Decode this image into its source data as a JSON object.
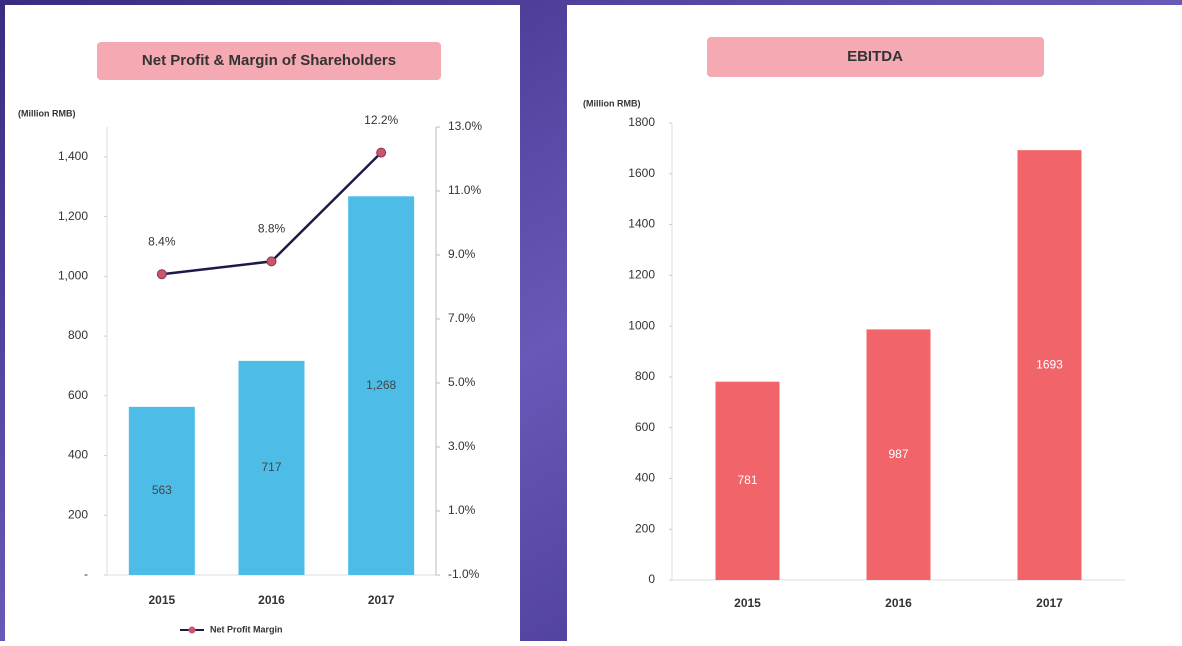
{
  "chart_data": [
    {
      "type": "bar_line",
      "title": "Net Profit & Margin of Shareholders",
      "unit_label": "(Million RMB)",
      "categories": [
        "2015",
        "2016",
        "2017"
      ],
      "ylim": [
        0,
        1500
      ],
      "yticks": [
        {
          "value": 0,
          "label": "-"
        },
        200,
        400,
        600,
        800,
        {
          "value": 1000,
          "label": "1,000"
        },
        {
          "value": 1200,
          "label": "1,200"
        },
        {
          "value": 1400,
          "label": "1,400"
        }
      ],
      "y2lim": [
        -1,
        13
      ],
      "y2ticks": [
        {
          "value": -1,
          "label": "-1.0%"
        },
        {
          "value": 1,
          "label": "1.0%"
        },
        {
          "value": 3,
          "label": "3.0%"
        },
        {
          "value": 5,
          "label": "5.0%"
        },
        {
          "value": 7,
          "label": "7.0%"
        },
        {
          "value": 9,
          "label": "9.0%"
        },
        {
          "value": 11,
          "label": "11.0%"
        },
        {
          "value": 13,
          "label": "13.0%"
        }
      ],
      "series": [
        {
          "type": "bar",
          "color": "#4dbde8",
          "values": [
            563,
            717,
            1268
          ],
          "value_labels": [
            "563",
            "717",
            "1,268"
          ]
        },
        {
          "type": "line",
          "name": "Net Profit Margin",
          "color": "#1c1a4a",
          "marker_color": "#c9566f",
          "axis": "y2",
          "values": [
            8.4,
            8.8,
            12.2
          ],
          "value_labels": [
            "8.4%",
            "8.8%",
            "12.2%"
          ]
        }
      ]
    },
    {
      "type": "bar",
      "title": "EBITDA",
      "unit_label": "(Million RMB)",
      "categories": [
        "2015",
        "2016",
        "2017"
      ],
      "ylim": [
        0,
        1800
      ],
      "yticks": [
        0,
        200,
        400,
        600,
        800,
        1000,
        1200,
        1400,
        1600,
        1800
      ],
      "series": [
        {
          "type": "bar",
          "color": "#f0646a",
          "values": [
            781,
            987,
            1693
          ]
        }
      ]
    }
  ]
}
